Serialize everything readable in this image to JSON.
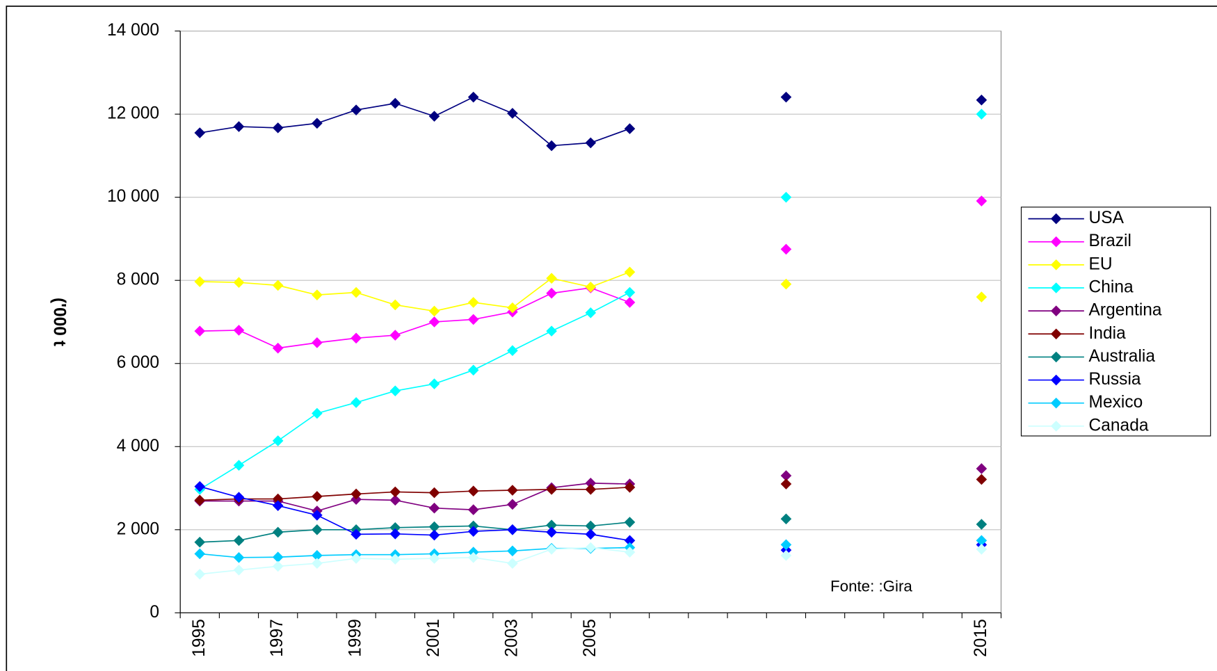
{
  "chart_data": {
    "type": "line",
    "y_label": "('000 t",
    "annotation": "Fonte: :Gira",
    "categories": [
      "1995",
      null,
      "1997",
      null,
      "1999",
      null,
      "2001",
      null,
      "2003",
      null,
      "2005",
      null,
      null,
      null,
      null,
      null,
      null,
      null,
      null,
      null,
      "2015"
    ],
    "ylim": [
      0,
      14000
    ],
    "yticks": [
      {
        "value": 0,
        "label": "0"
      },
      {
        "value": 2000,
        "label": "2 000"
      },
      {
        "value": 4000,
        "label": "4 000"
      },
      {
        "value": 6000,
        "label": "6 000"
      },
      {
        "value": 8000,
        "label": "8 000"
      },
      {
        "value": 10000,
        "label": "10 000"
      },
      {
        "value": 12000,
        "label": "12 000"
      },
      {
        "value": 14000,
        "label": "14 000"
      }
    ],
    "grid": true,
    "legend": "right",
    "series": [
      {
        "name": "USA",
        "color": "#000080",
        "values": [
          11550,
          11700,
          11670,
          11780,
          12100,
          12260,
          11950,
          12410,
          12020,
          11240,
          11310,
          11650,
          null,
          null,
          null,
          12410,
          null,
          null,
          null,
          null,
          12340
        ]
      },
      {
        "name": "Brazil",
        "color": "#ff00ff",
        "values": [
          6780,
          6800,
          6370,
          6500,
          6610,
          6680,
          7000,
          7060,
          7240,
          7690,
          7820,
          7470,
          null,
          null,
          null,
          8750,
          null,
          null,
          null,
          null,
          9910
        ]
      },
      {
        "name": "EU",
        "color": "#ffff00",
        "values": [
          7970,
          7950,
          7880,
          7650,
          7710,
          7410,
          7260,
          7470,
          7340,
          8050,
          7840,
          8200,
          null,
          null,
          null,
          7910,
          null,
          null,
          null,
          null,
          7600
        ]
      },
      {
        "name": "China",
        "color": "#00ffff",
        "values": [
          2970,
          3550,
          4140,
          4800,
          5060,
          5340,
          5510,
          5840,
          6310,
          6780,
          7220,
          7710,
          null,
          null,
          null,
          10000,
          null,
          null,
          null,
          null,
          12000
        ]
      },
      {
        "name": "Argentina",
        "color": "#800080",
        "values": [
          2690,
          2690,
          2690,
          2450,
          2730,
          2710,
          2520,
          2480,
          2610,
          3010,
          3120,
          3100,
          null,
          null,
          null,
          3300,
          null,
          null,
          null,
          null,
          3470
        ]
      },
      {
        "name": "India",
        "color": "#800000",
        "values": [
          2710,
          2740,
          2740,
          2800,
          2860,
          2910,
          2890,
          2930,
          2950,
          2970,
          2970,
          3020,
          null,
          null,
          null,
          3100,
          null,
          null,
          null,
          null,
          3210
        ]
      },
      {
        "name": "Australia",
        "color": "#008080",
        "values": [
          1700,
          1740,
          1940,
          2000,
          2000,
          2050,
          2070,
          2090,
          2000,
          2110,
          2090,
          2180,
          null,
          null,
          null,
          2260,
          null,
          null,
          null,
          null,
          2130
        ]
      },
      {
        "name": "Russia",
        "color": "#0000ff",
        "values": [
          3040,
          2780,
          2580,
          2350,
          1890,
          1900,
          1870,
          1960,
          2000,
          1940,
          1890,
          1740,
          null,
          null,
          null,
          1510,
          null,
          null,
          null,
          null,
          1640
        ]
      },
      {
        "name": "Mexico",
        "color": "#00ccff",
        "values": [
          1420,
          1330,
          1340,
          1380,
          1400,
          1400,
          1420,
          1460,
          1490,
          1550,
          1550,
          1570,
          null,
          null,
          null,
          1640,
          null,
          null,
          null,
          null,
          1740
        ]
      },
      {
        "name": "Canada",
        "color": "#ccffff",
        "values": [
          930,
          1030,
          1120,
          1190,
          1310,
          1290,
          1310,
          1330,
          1190,
          1530,
          1570,
          1460,
          null,
          null,
          null,
          1380,
          null,
          null,
          null,
          null,
          1530
        ]
      }
    ]
  }
}
